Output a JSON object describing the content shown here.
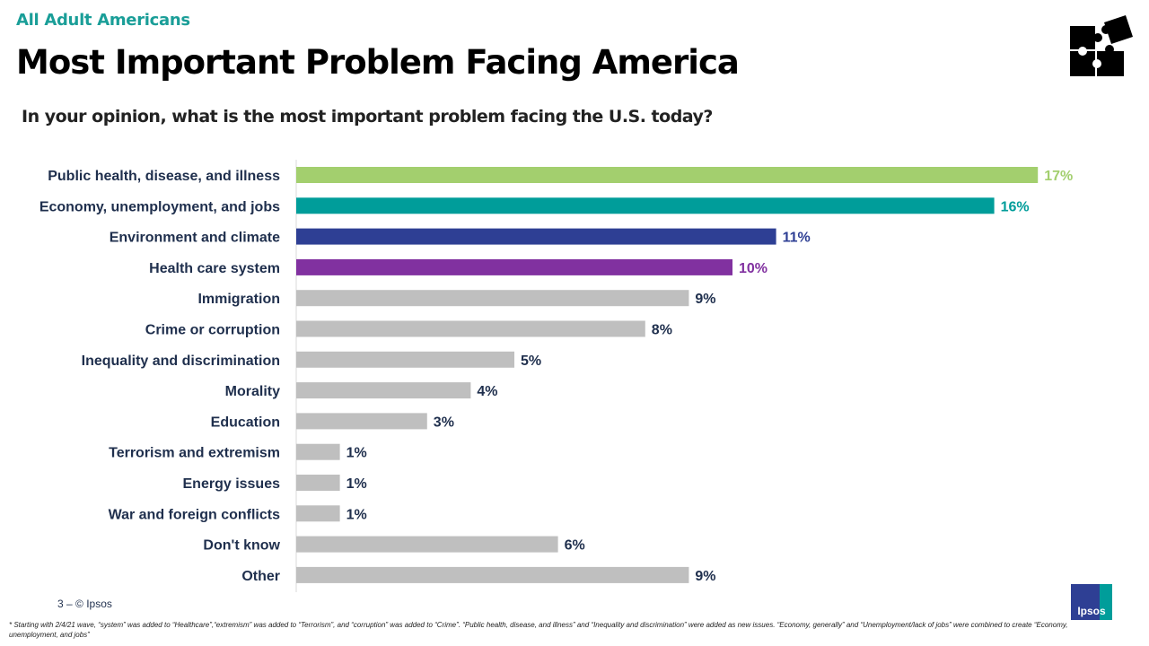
{
  "header": {
    "kicker": "All Adult Americans",
    "title": "Most Important Problem Facing America",
    "question": "In your opinion, what is the most important problem facing the U.S. today?"
  },
  "chart_data": {
    "type": "bar",
    "orientation": "horizontal",
    "categories": [
      "Public health, disease, and illness",
      "Economy, unemployment, and jobs",
      "Environment and climate",
      "Health care system",
      "Immigration",
      "Crime or corruption",
      "Inequality and discrimination",
      "Morality",
      "Education",
      "Terrorism and extremism",
      "Energy issues",
      "War and foreign conflicts",
      "Don't know",
      "Other"
    ],
    "values": [
      17,
      16,
      11,
      10,
      9,
      8,
      5,
      4,
      3,
      1,
      1,
      1,
      6,
      9
    ],
    "data_labels": [
      "17%",
      "16%",
      "11%",
      "10%",
      "9%",
      "8%",
      "5%",
      "4%",
      "3%",
      "1%",
      "1%",
      "1%",
      "6%",
      "9%"
    ],
    "colors": [
      "#a3cf6e",
      "#009d9a",
      "#2e3f94",
      "#8131a0",
      "#bfbfbf",
      "#bfbfbf",
      "#bfbfbf",
      "#bfbfbf",
      "#bfbfbf",
      "#bfbfbf",
      "#bfbfbf",
      "#bfbfbf",
      "#bfbfbf",
      "#bfbfbf"
    ],
    "label_colors": [
      "#a3cf6e",
      "#009d9a",
      "#2e3f94",
      "#8131a0",
      "#1f2f4d",
      "#1f2f4d",
      "#1f2f4d",
      "#1f2f4d",
      "#1f2f4d",
      "#1f2f4d",
      "#1f2f4d",
      "#1f2f4d",
      "#1f2f4d",
      "#1f2f4d"
    ],
    "xlim": [
      0,
      17.5
    ],
    "grid": false
  },
  "footer": {
    "page": "3 –  © Ipsos",
    "footnote": "* Starting with 2/4/21 wave, “system” was added to “Healthcare”,“extremism” was added to “Terrorism”, and “corruption” was added to “Crime”. “Public health, disease, and illness” and “Inequality and discrimination” were added as new issues. “Economy, generally” and “Unemployment/lack of jobs” were combined to create “Economy, unemployment, and jobs”",
    "logo": "Ipsos"
  }
}
